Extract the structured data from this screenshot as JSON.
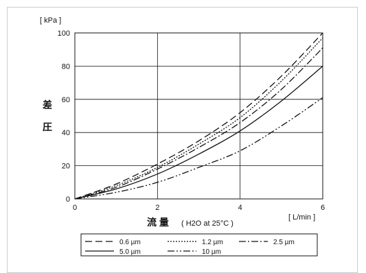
{
  "chart_data": {
    "type": "line",
    "title": "",
    "ylabel": [
      "差",
      "圧"
    ],
    "yunit": "[ kPa ]",
    "xlabel_main": "流 量",
    "xlabel_note": "( H2O at 25°C )",
    "xunit": "[ L/min ]",
    "xlim": [
      0,
      6
    ],
    "ylim": [
      0,
      100
    ],
    "xticks": [
      0,
      2,
      4,
      6
    ],
    "yticks": [
      0,
      20,
      40,
      60,
      80,
      100
    ],
    "grid": true,
    "legend_position": "bottom",
    "x": [
      0,
      1,
      2,
      3,
      4,
      5,
      6
    ],
    "series": [
      {
        "name": "0.6 µm",
        "dash": "10 5",
        "values": [
          0,
          9,
          21,
          35,
          52,
          74,
          100
        ]
      },
      {
        "name": "1.2 µm",
        "dash": "2 2",
        "values": [
          0,
          8,
          19,
          33,
          49,
          71,
          97
        ]
      },
      {
        "name": "2.5 µm",
        "dash": "10 3 2 3",
        "values": [
          0,
          7,
          18,
          31,
          46,
          66,
          91
        ]
      },
      {
        "name": "5.0 µm",
        "dash": "",
        "values": [
          0,
          6,
          15,
          27,
          41,
          59,
          80
        ]
      },
      {
        "name": "10 µm",
        "dash": "10 3 2 3 2 3",
        "values": [
          0,
          4,
          10,
          19,
          29,
          44,
          61
        ]
      }
    ]
  }
}
